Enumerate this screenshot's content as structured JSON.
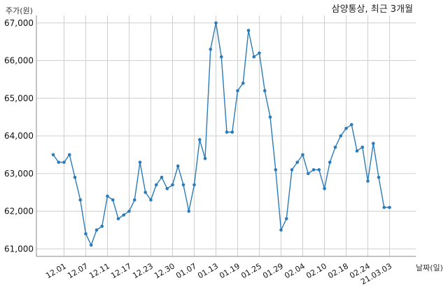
{
  "chart_data": {
    "type": "line",
    "title": "삼양통상, 최근 3개월",
    "ylabel": "주가(원)",
    "xlabel": "날짜(일)",
    "ylim": [
      60800,
      67200
    ],
    "grid": true,
    "color": "#2b7bb9",
    "y_ticks": [
      61000,
      62000,
      63000,
      64000,
      65000,
      66000,
      67000
    ],
    "y_tick_labels": [
      "61,000",
      "62,000",
      "63,000",
      "64,000",
      "65,000",
      "66,000",
      "67,000"
    ],
    "x_tick_labels": [
      "12.01",
      "12.07",
      "12.11",
      "12.17",
      "12.23",
      "12.30",
      "01.07",
      "01.13",
      "01.19",
      "01.25",
      "01.29",
      "02.04",
      "02.10",
      "02.18",
      "02.24",
      "21.03.03"
    ],
    "x_tick_indices": [
      2,
      6,
      10,
      14,
      18,
      22,
      26,
      30,
      34,
      38,
      42,
      46,
      50,
      54,
      58,
      62
    ],
    "values": [
      63500,
      63300,
      63300,
      63500,
      62900,
      62300,
      61400,
      61100,
      61500,
      61600,
      62400,
      62300,
      61800,
      61900,
      62000,
      62300,
      63300,
      62500,
      62300,
      62700,
      62900,
      62600,
      62700,
      63200,
      62700,
      62000,
      62700,
      63900,
      63400,
      66300,
      67000,
      66100,
      64100,
      64100,
      65200,
      65400,
      66800,
      66100,
      66200,
      65200,
      64500,
      63100,
      61500,
      61800,
      63100,
      63300,
      63500,
      63000,
      63100,
      63100,
      62600,
      63300,
      63700,
      64000,
      64200,
      64300,
      63600,
      63700,
      62800,
      63800,
      62900,
      62100,
      62100
    ]
  }
}
